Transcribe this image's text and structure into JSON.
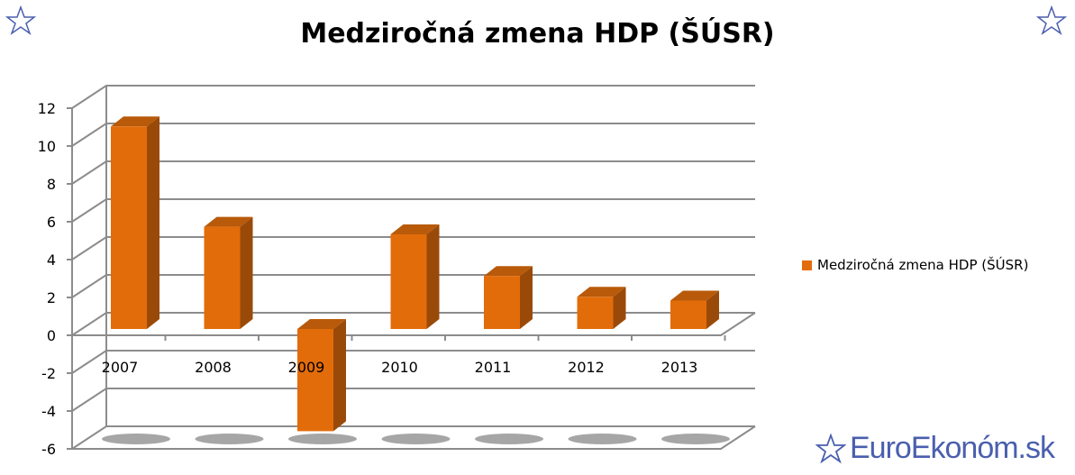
{
  "chart_data": {
    "type": "bar",
    "title": "Medziročná zmena HDP (ŠÚSR)",
    "categories": [
      "2007",
      "2008",
      "2009",
      "2010",
      "2011",
      "2012",
      "2013"
    ],
    "series": [
      {
        "name": "Medziročná zmena HDP (ŠÚSR)",
        "values": [
          10.7,
          5.4,
          -5.4,
          5.0,
          2.8,
          1.7,
          1.5
        ]
      }
    ],
    "ylim": [
      -6,
      12
    ],
    "yticks": [
      -6,
      -4,
      -2,
      0,
      2,
      4,
      6,
      8,
      10,
      12
    ],
    "xlabel": "",
    "ylabel": "",
    "grid": true,
    "legend": "right",
    "colors": {
      "bar": "#e36c0a",
      "bar_side": "#9a4a08",
      "bar_top": "#b85a0a",
      "grid": "#8c8c8c"
    }
  },
  "branding": {
    "logo_text": "EuroEkonóm.sk"
  }
}
